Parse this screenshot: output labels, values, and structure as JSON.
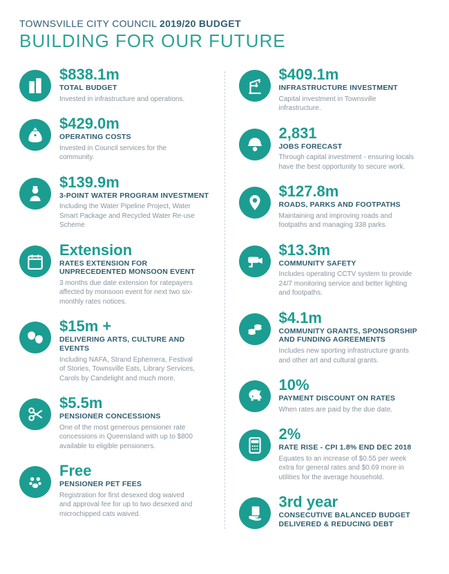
{
  "header": {
    "pretitle_light": "TOWNSVILLE CITY COUNCIL ",
    "pretitle_bold": "2019/20 BUDGET",
    "title": "BUILDING FOR OUR FUTURE"
  },
  "left": [
    {
      "icon": "building-icon",
      "value": "$838.1m",
      "label": "TOTAL BUDGET",
      "desc": "Invested in infrastructure and operations."
    },
    {
      "icon": "money-bag-icon",
      "value": "$429.0m",
      "label": "OPERATING COSTS",
      "desc": "Invested in Council services for the community."
    },
    {
      "icon": "worker-icon",
      "value": "$139.9m",
      "label": "3-POINT WATER PROGRAM INVESTMENT",
      "desc": "Including the Water Pipeline Project, Water Smart Package and Recycled Water Re-use Scheme"
    },
    {
      "icon": "calendar-icon",
      "value": "Extension",
      "label": "RATES EXTENSION FOR UNPRECEDENTED MONSOON EVENT",
      "desc": "3 months due date extension for ratepayers affected by monsoon event for next two six-monthly rates notices."
    },
    {
      "icon": "masks-icon",
      "value": "$15m +",
      "label": "DELIVERING ARTS, CULTURE AND EVENTS",
      "desc": "Including NAFA, Strand Ephemera, Festival of Stories, Townsville Eats, Library Services, Carols by Candelight and much more."
    },
    {
      "icon": "scissors-icon",
      "value": "$5.5m",
      "label": "PENSIONER CONCESSIONS",
      "desc": "One of the most generous pensioner rate concessions in Queensland with up to $800 available to eligible pensioners."
    },
    {
      "icon": "paw-icon",
      "value": "Free",
      "label": "PENSIONER PET FEES",
      "desc": "Registration for first desexed dog waived and approval fee for up to two desexed and microchipped cats waived."
    }
  ],
  "right": [
    {
      "icon": "crane-icon",
      "value": "$409.1m",
      "label": "INFRASTRUCTURE INVESTMENT",
      "desc": "Capital investment in Townsville infrastructure."
    },
    {
      "icon": "hardhat-icon",
      "value": "2,831",
      "label": "JOBS FORECAST",
      "desc": "Through capital investment - ensuring locals have the best opportunity to secure work."
    },
    {
      "icon": "map-pin-icon",
      "value": "$127.8m",
      "label": "ROADS, PARKS AND FOOTPATHS",
      "desc": "Maintaining and improving roads and footpaths and managing 338 parks."
    },
    {
      "icon": "cctv-icon",
      "value": "$13.3m",
      "label": "COMMUNITY SAFETY",
      "desc": "Includes operating CCTV system to provide 24/7 monitoring service and better lighting and footpaths."
    },
    {
      "icon": "coins-icon",
      "value": "$4.1m",
      "label": "COMMUNITY GRANTS, SPONSORSHIP AND FUNDING AGREEMENTS",
      "desc": "Includes new sporting infrastructure grants and other art and cultural grants."
    },
    {
      "icon": "piggy-icon",
      "value": "10%",
      "label": "PAYMENT DISCOUNT ON RATES",
      "desc": "When rates are paid by the due date."
    },
    {
      "icon": "calculator-icon",
      "value": "2%",
      "label": "RATE RISE - CPI 1.8% END DEC 2018",
      "desc": "Equates to an increase of $0.55 per week extra for general rates and $0.69 more in utilities for the average household."
    },
    {
      "icon": "handout-icon",
      "value": "3rd year",
      "label": "CONSECUTIVE BALANCED BUDGET DELIVERED & REDUCING DEBT",
      "desc": ""
    }
  ]
}
